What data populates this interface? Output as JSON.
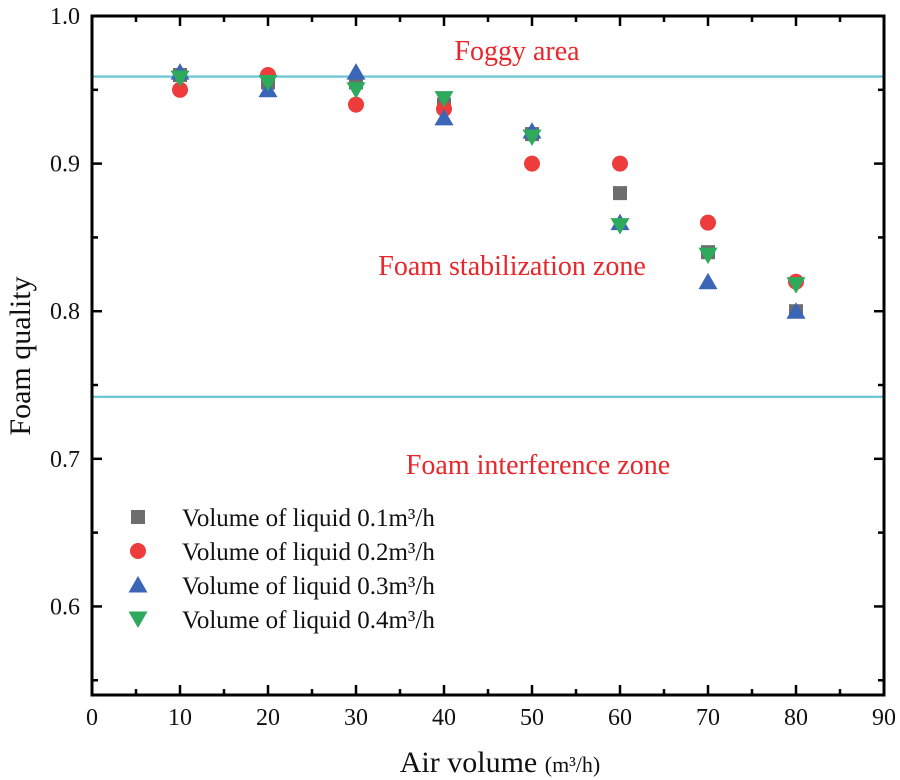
{
  "chart_data": {
    "type": "scatter",
    "xlabel": "Air volume",
    "xlabel_unit": "(m³/h)",
    "ylabel": "Foam quality",
    "xlim": [
      0,
      90
    ],
    "ylim": [
      0.54,
      1.0
    ],
    "x_ticks": [
      "0",
      "10",
      "20",
      "30",
      "40",
      "50",
      "60",
      "70",
      "80",
      "90"
    ],
    "y_ticks": [
      "0.6",
      "0.7",
      "0.8",
      "0.9",
      "1.0"
    ],
    "grid": false,
    "legend_position": "bottom-left",
    "zones": [
      {
        "label": "Foggy area",
        "boundary_y": 0.959
      },
      {
        "label": "Foam stabilization zone"
      },
      {
        "label": "Foam interference zone",
        "boundary_y": 0.742
      }
    ],
    "zone_line_color": "#6fc7d8",
    "zone_text_color": "#e8262b",
    "x": [
      10,
      20,
      30,
      40,
      50,
      60,
      70,
      80
    ],
    "series": [
      {
        "name": "Volume of liquid 0.1m³/h",
        "marker": "square",
        "color": "#6d6d6d",
        "values": [
          0.96,
          0.955,
          0.955,
          0.94,
          0.92,
          0.88,
          0.84,
          0.8
        ]
      },
      {
        "name": "Volume of liquid 0.2m³/h",
        "marker": "circle",
        "color": "#ee3b3b",
        "values": [
          0.95,
          0.96,
          0.94,
          0.937,
          0.9,
          0.9,
          0.86,
          0.82
        ]
      },
      {
        "name": "Volume of liquid 0.3m³/h",
        "marker": "triangle-up",
        "color": "#3b66b8",
        "values": [
          0.962,
          0.95,
          0.962,
          0.931,
          0.922,
          0.86,
          0.82,
          0.8
        ]
      },
      {
        "name": "Volume of liquid 0.4m³/h",
        "marker": "triangle-down",
        "color": "#2eaa5c",
        "values": [
          0.958,
          0.955,
          0.95,
          0.944,
          0.918,
          0.858,
          0.838,
          0.818
        ]
      }
    ]
  }
}
